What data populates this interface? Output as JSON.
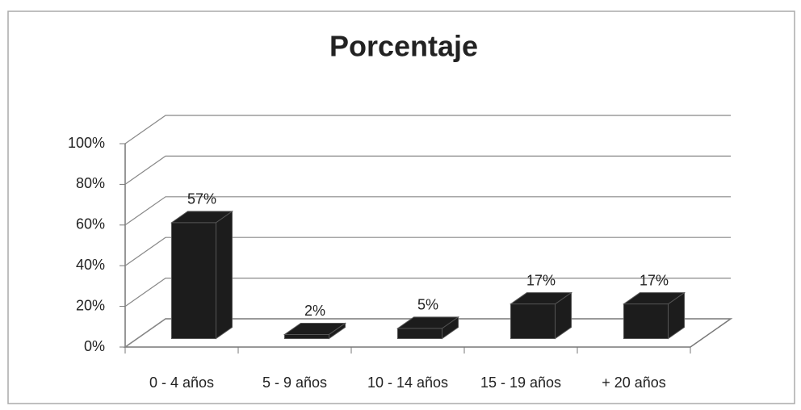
{
  "chart_data": {
    "type": "bar3d",
    "title": "Porcentaje",
    "categories": [
      "0 - 4 años",
      "5 - 9 años",
      "10 - 14 años",
      "15 - 19 años",
      "+ 20 años"
    ],
    "values": [
      57,
      2,
      5,
      17,
      17
    ],
    "value_labels": [
      "57%",
      "2%",
      "5%",
      "17%",
      "17%"
    ],
    "color": "#1c1c1c",
    "ylim": [
      0,
      100
    ],
    "yticks": [
      {
        "value": 0,
        "label": "0%"
      },
      {
        "value": 20,
        "label": "20%"
      },
      {
        "value": 40,
        "label": "40%"
      },
      {
        "value": 60,
        "label": "60%"
      },
      {
        "value": 80,
        "label": "80%"
      },
      {
        "value": 100,
        "label": "100%"
      }
    ],
    "grid": true
  }
}
